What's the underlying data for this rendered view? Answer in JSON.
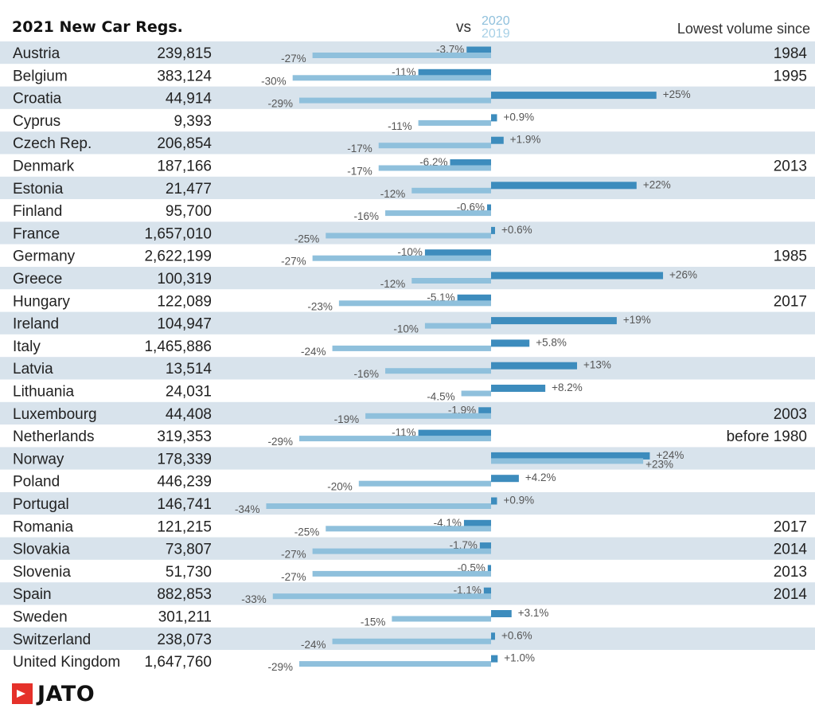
{
  "chart_data": {
    "type": "bar",
    "title": "2021 New Car Regs.",
    "comparison_label": "vs",
    "series": [
      {
        "name": "2020",
        "color": "#3d8cbd"
      },
      {
        "name": "2019",
        "color": "#8fc0dc"
      }
    ],
    "lowest_volume_header": "Lowest volume since",
    "rows": [
      {
        "country": "Austria",
        "regs": "239,815",
        "vs2020": -3.7,
        "vs2020_label": "-3.7%",
        "vs2019": -27,
        "vs2019_label": "-27%",
        "since": "1984"
      },
      {
        "country": "Belgium",
        "regs": "383,124",
        "vs2020": -11,
        "vs2020_label": "-11%",
        "vs2019": -30,
        "vs2019_label": "-30%",
        "since": "1995"
      },
      {
        "country": "Croatia",
        "regs": "44,914",
        "vs2020": 25,
        "vs2020_label": "+25%",
        "vs2019": -29,
        "vs2019_label": "-29%",
        "since": ""
      },
      {
        "country": "Cyprus",
        "regs": "9,393",
        "vs2020": 0.9,
        "vs2020_label": "+0.9%",
        "vs2019": -11,
        "vs2019_label": "-11%",
        "since": ""
      },
      {
        "country": "Czech Rep.",
        "regs": "206,854",
        "vs2020": 1.9,
        "vs2020_label": "+1.9%",
        "vs2019": -17,
        "vs2019_label": "-17%",
        "since": ""
      },
      {
        "country": "Denmark",
        "regs": "187,166",
        "vs2020": -6.2,
        "vs2020_label": "-6.2%",
        "vs2019": -17,
        "vs2019_label": "-17%",
        "since": "2013"
      },
      {
        "country": "Estonia",
        "regs": "21,477",
        "vs2020": 22,
        "vs2020_label": "+22%",
        "vs2019": -12,
        "vs2019_label": "-12%",
        "since": ""
      },
      {
        "country": "Finland",
        "regs": "95,700",
        "vs2020": -0.6,
        "vs2020_label": "-0.6%",
        "vs2019": -16,
        "vs2019_label": "-16%",
        "since": ""
      },
      {
        "country": "France",
        "regs": "1,657,010",
        "vs2020": 0.6,
        "vs2020_label": "+0.6%",
        "vs2019": -25,
        "vs2019_label": "-25%",
        "since": ""
      },
      {
        "country": "Germany",
        "regs": "2,622,199",
        "vs2020": -10,
        "vs2020_label": "-10%",
        "vs2019": -27,
        "vs2019_label": "-27%",
        "since": "1985"
      },
      {
        "country": "Greece",
        "regs": "100,319",
        "vs2020": 26,
        "vs2020_label": "+26%",
        "vs2019": -12,
        "vs2019_label": "-12%",
        "since": ""
      },
      {
        "country": "Hungary",
        "regs": "122,089",
        "vs2020": -5.1,
        "vs2020_label": "-5.1%",
        "vs2019": -23,
        "vs2019_label": "-23%",
        "since": "2017"
      },
      {
        "country": "Ireland",
        "regs": "104,947",
        "vs2020": 19,
        "vs2020_label": "+19%",
        "vs2019": -10,
        "vs2019_label": "-10%",
        "since": ""
      },
      {
        "country": "Italy",
        "regs": "1,465,886",
        "vs2020": 5.8,
        "vs2020_label": "+5.8%",
        "vs2019": -24,
        "vs2019_label": "-24%",
        "since": ""
      },
      {
        "country": "Latvia",
        "regs": "13,514",
        "vs2020": 13,
        "vs2020_label": "+13%",
        "vs2019": -16,
        "vs2019_label": "-16%",
        "since": ""
      },
      {
        "country": "Lithuania",
        "regs": "24,031",
        "vs2020": 8.2,
        "vs2020_label": "+8.2%",
        "vs2019": -4.5,
        "vs2019_label": "-4.5%",
        "since": ""
      },
      {
        "country": "Luxembourg",
        "regs": "44,408",
        "vs2020": -1.9,
        "vs2020_label": "-1.9%",
        "vs2019": -19,
        "vs2019_label": "-19%",
        "since": "2003"
      },
      {
        "country": "Netherlands",
        "regs": "319,353",
        "vs2020": -11,
        "vs2020_label": "-11%",
        "vs2019": -29,
        "vs2019_label": "-29%",
        "since": "before 1980"
      },
      {
        "country": "Norway",
        "regs": "178,339",
        "vs2020": 24,
        "vs2020_label": "+24%",
        "vs2019": 23,
        "vs2019_label": "+23%",
        "since": ""
      },
      {
        "country": "Poland",
        "regs": "446,239",
        "vs2020": 4.2,
        "vs2020_label": "+4.2%",
        "vs2019": -20,
        "vs2019_label": "-20%",
        "since": ""
      },
      {
        "country": "Portugal",
        "regs": "146,741",
        "vs2020": 0.9,
        "vs2020_label": "+0.9%",
        "vs2019": -34,
        "vs2019_label": "-34%",
        "since": ""
      },
      {
        "country": "Romania",
        "regs": "121,215",
        "vs2020": -4.1,
        "vs2020_label": "-4.1%",
        "vs2019": -25,
        "vs2019_label": "-25%",
        "since": "2017"
      },
      {
        "country": "Slovakia",
        "regs": "73,807",
        "vs2020": -1.7,
        "vs2020_label": "-1.7%",
        "vs2019": -27,
        "vs2019_label": "-27%",
        "since": "2014"
      },
      {
        "country": "Slovenia",
        "regs": "51,730",
        "vs2020": -0.5,
        "vs2020_label": "-0.5%",
        "vs2019": -27,
        "vs2019_label": "-27%",
        "since": "2013"
      },
      {
        "country": "Spain",
        "regs": "882,853",
        "vs2020": -1.1,
        "vs2020_label": "-1.1%",
        "vs2019": -33,
        "vs2019_label": "-33%",
        "since": "2014"
      },
      {
        "country": "Sweden",
        "regs": "301,211",
        "vs2020": 3.1,
        "vs2020_label": "+3.1%",
        "vs2019": -15,
        "vs2019_label": "-15%",
        "since": ""
      },
      {
        "country": "Switzerland",
        "regs": "238,073",
        "vs2020": 0.6,
        "vs2020_label": "+0.6%",
        "vs2019": -24,
        "vs2019_label": "-24%",
        "since": ""
      },
      {
        "country": "United Kingdom",
        "regs": "1,647,760",
        "vs2020": 1.0,
        "vs2020_label": "+1.0%",
        "vs2019": -29,
        "vs2019_label": "-29%",
        "since": ""
      }
    ]
  },
  "branding": {
    "logo_text": "JATO",
    "logo_color": "#e5312a"
  },
  "colors": {
    "row_band": "#d8e3ec",
    "row_plain": "#ffffff"
  }
}
